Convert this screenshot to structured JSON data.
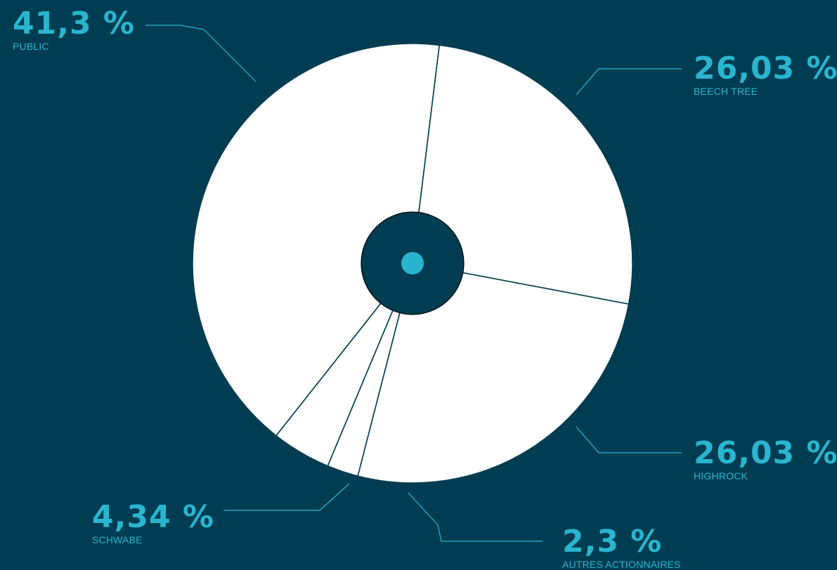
{
  "colors": {
    "background": "#003d52",
    "slice_fill": "#ffffff",
    "separator": "#003d52",
    "accent": "#29b5cf",
    "hub": "#003d52",
    "hub_dot": "#29b5cf"
  },
  "chart_data": {
    "type": "pie",
    "style": "donut-with-small-hole",
    "start": "top, clockwise",
    "slices": [
      {
        "label": "BEECH TREE",
        "value": 26.03,
        "display": "26,03 %"
      },
      {
        "label": "HIGHROCK",
        "value": 26.03,
        "display": "26,03 %"
      },
      {
        "label": "AUTRES ACTIONNAIRES",
        "value": 2.3,
        "display": "2,3 %"
      },
      {
        "label": "SCHWABE",
        "value": 4.34,
        "display": "4,34 %"
      },
      {
        "label": "PUBLIC",
        "value": 41.3,
        "display": "41,3 %"
      }
    ],
    "legend": "callouts around the pie"
  }
}
